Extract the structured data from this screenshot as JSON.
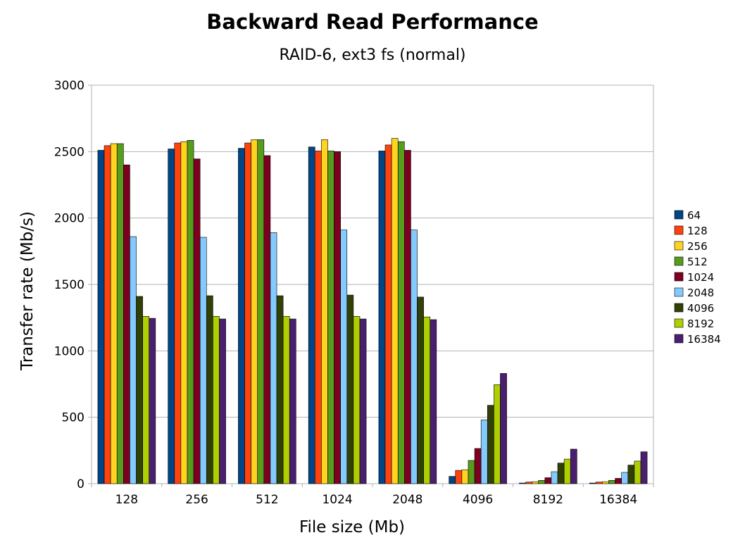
{
  "chart_data": {
    "type": "bar",
    "title": "Backward Read Performance",
    "subtitle": "RAID-6, ext3 fs (normal)",
    "xlabel": "File size (Mb)",
    "ylabel": "Transfer rate (Mb/s)",
    "ylim": [
      0,
      3000
    ],
    "yticks": [
      "0",
      "500",
      "1000",
      "1500",
      "2000",
      "2500",
      "3000"
    ],
    "grid": true,
    "legend_position": "right",
    "categories": [
      "128",
      "256",
      "512",
      "1024",
      "2048",
      "4096",
      "8192",
      "16384"
    ],
    "series": [
      {
        "name": "64",
        "color": "#004586",
        "values": [
          2510,
          2520,
          2525,
          2535,
          2505,
          55,
          5,
          5
        ]
      },
      {
        "name": "128",
        "color": "#ff420e",
        "values": [
          2545,
          2565,
          2565,
          2505,
          2550,
          100,
          12,
          12
        ]
      },
      {
        "name": "256",
        "color": "#ffd320",
        "values": [
          2560,
          2575,
          2590,
          2590,
          2600,
          105,
          15,
          15
        ]
      },
      {
        "name": "512",
        "color": "#579d1c",
        "values": [
          2560,
          2585,
          2590,
          2505,
          2575,
          175,
          25,
          25
        ]
      },
      {
        "name": "1024",
        "color": "#7e0021",
        "values": [
          2400,
          2445,
          2470,
          2500,
          2510,
          265,
          45,
          40
        ]
      },
      {
        "name": "2048",
        "color": "#83caff",
        "values": [
          1860,
          1855,
          1890,
          1910,
          1910,
          480,
          90,
          85
        ]
      },
      {
        "name": "4096",
        "color": "#314004",
        "values": [
          1410,
          1415,
          1415,
          1420,
          1405,
          590,
          155,
          140
        ]
      },
      {
        "name": "8192",
        "color": "#aecf00",
        "values": [
          1260,
          1260,
          1260,
          1260,
          1255,
          745,
          185,
          170
        ]
      },
      {
        "name": "16384",
        "color": "#4b1f6f",
        "values": [
          1245,
          1240,
          1240,
          1240,
          1235,
          830,
          260,
          240
        ]
      }
    ]
  }
}
